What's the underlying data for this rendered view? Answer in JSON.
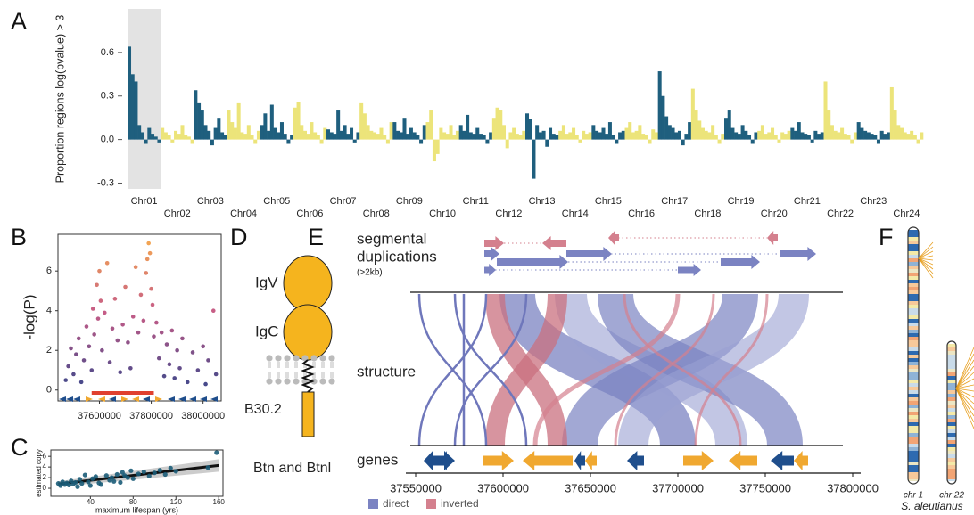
{
  "panels": [
    "A",
    "B",
    "C",
    "D",
    "E",
    "F"
  ],
  "chart_data": [
    {
      "type": "bar",
      "ylabel": "Proportion regions log(pvalue) > 3",
      "categories": [
        "Chr01",
        "Chr02",
        "Chr03",
        "Chr04",
        "Chr05",
        "Chr06",
        "Chr07",
        "Chr08",
        "Chr09",
        "Chr10",
        "Chr11",
        "Chr12",
        "Chr13",
        "Chr14",
        "Chr15",
        "Chr16",
        "Chr17",
        "Chr18",
        "Chr19",
        "Chr20",
        "Chr21",
        "Chr22",
        "Chr23",
        "Chr24"
      ],
      "values": [
        [
          0.64,
          0.45,
          0.4,
          0.1,
          0.05,
          -0.03,
          0.08,
          0.04,
          0.02,
          -0.02
        ],
        [
          0.08,
          0.05,
          0.03,
          -0.02,
          0.06,
          0.04,
          0.1,
          0.03,
          0.02,
          -0.03
        ],
        [
          0.34,
          0.25,
          0.2,
          0.1,
          0.06,
          -0.04,
          0.08,
          0.15,
          0.05,
          0.03
        ],
        [
          0.2,
          0.12,
          0.08,
          0.25,
          0.05,
          0.04,
          0.1,
          0.03,
          -0.03,
          0.06
        ],
        [
          0.1,
          0.18,
          0.06,
          0.24,
          0.08,
          0.05,
          0.12,
          0.04,
          -0.03,
          0.03
        ],
        [
          0.22,
          0.26,
          0.1,
          0.06,
          0.04,
          0.12,
          0.05,
          0.03,
          -0.03,
          0.08
        ],
        [
          0.07,
          0.05,
          0.04,
          0.2,
          0.06,
          0.1,
          0.04,
          0.08,
          -0.02,
          0.05
        ],
        [
          0.25,
          0.18,
          0.1,
          0.06,
          0.05,
          0.04,
          0.08,
          0.03,
          -0.03,
          0.12
        ],
        [
          0.12,
          0.06,
          0.05,
          0.15,
          0.04,
          0.08,
          0.05,
          0.03,
          -0.03,
          0.1
        ],
        [
          0.12,
          0.2,
          -0.15,
          -0.1,
          0.08,
          0.05,
          0.04,
          0.1,
          0.03,
          0.06
        ],
        [
          0.1,
          0.06,
          0.17,
          0.05,
          0.04,
          0.08,
          0.04,
          0.03,
          -0.03,
          0.05
        ],
        [
          0.15,
          0.22,
          0.2,
          0.1,
          -0.06,
          0.05,
          0.08,
          0.04,
          0.03,
          0.06
        ],
        [
          0.18,
          0.14,
          -0.27,
          0.1,
          0.05,
          0.06,
          -0.05,
          0.08,
          0.04,
          0.03
        ],
        [
          0.06,
          0.1,
          0.04,
          0.05,
          0.08,
          0.03,
          -0.02,
          0.06,
          0.04,
          0.05
        ],
        [
          0.1,
          0.06,
          0.05,
          0.08,
          0.04,
          0.12,
          0.03,
          -0.03,
          0.05,
          0.06
        ],
        [
          0.08,
          0.12,
          0.05,
          0.06,
          0.1,
          0.04,
          0.03,
          -0.03,
          0.07,
          0.05
        ],
        [
          0.47,
          0.3,
          0.16,
          0.1,
          0.08,
          0.05,
          0.06,
          -0.04,
          0.04,
          0.12
        ],
        [
          0.35,
          0.2,
          0.13,
          0.08,
          0.06,
          0.05,
          0.1,
          0.03,
          -0.03,
          0.04
        ],
        [
          0.15,
          0.2,
          0.08,
          0.05,
          0.04,
          0.1,
          0.06,
          0.03,
          -0.03,
          0.05
        ],
        [
          0.06,
          0.1,
          0.04,
          0.05,
          0.08,
          0.03,
          -0.02,
          0.05,
          0.04,
          0.06
        ],
        [
          0.08,
          0.06,
          0.12,
          0.05,
          0.04,
          0.03,
          -0.02,
          0.06,
          0.04,
          0.05
        ],
        [
          0.4,
          0.2,
          0.1,
          0.06,
          0.05,
          0.08,
          0.04,
          0.03,
          -0.03,
          0.05
        ],
        [
          0.12,
          0.08,
          0.06,
          0.05,
          0.04,
          0.03,
          -0.03,
          0.06,
          0.04,
          0.05
        ],
        [
          0.36,
          0.2,
          0.1,
          0.08,
          0.05,
          0.04,
          0.06,
          0.03,
          -0.03,
          0.05
        ]
      ],
      "colors": [
        "#1f5f7e",
        "#ece47a"
      ],
      "highlight": "Chr01",
      "highlight_color": "#e3e3e3",
      "ylim": [
        -0.34,
        0.9
      ],
      "yticks": [
        -0.3,
        {
          "value": 0,
          "label": "0.0"
        },
        0.3,
        0.6
      ]
    },
    {
      "type": "scatter",
      "ylabel": "-log(P)",
      "x": [
        37470000,
        37480000,
        37490000,
        37500000,
        37510000,
        37520000,
        37530000,
        37540000,
        37550000,
        37560000,
        37570000,
        37575000,
        37580000,
        37590000,
        37595000,
        37600000,
        37605000,
        37610000,
        37620000,
        37630000,
        37640000,
        37650000,
        37660000,
        37670000,
        37680000,
        37690000,
        37700000,
        37710000,
        37720000,
        37730000,
        37740000,
        37750000,
        37760000,
        37770000,
        37780000,
        37785000,
        37790000,
        37795000,
        37800000,
        37805000,
        37810000,
        37820000,
        37830000,
        37840000,
        37850000,
        37860000,
        37870000,
        37880000,
        37890000,
        37900000,
        37910000,
        37920000,
        37940000,
        37960000,
        37980000,
        38000000,
        38010000,
        38020000,
        38040000,
        38050000
      ],
      "y": [
        0.5,
        1.2,
        2.1,
        0.8,
        1.8,
        2.6,
        0.4,
        1.5,
        3.2,
        2.2,
        1.0,
        4.1,
        2.8,
        5.3,
        3.6,
        6.0,
        4.5,
        2.0,
        3.9,
        6.4,
        1.4,
        3.1,
        4.6,
        2.5,
        0.9,
        3.3,
        5.2,
        2.4,
        1.1,
        3.7,
        6.2,
        2.9,
        4.8,
        3.5,
        5.9,
        6.6,
        7.4,
        6.9,
        5.1,
        4.3,
        2.7,
        3.4,
        1.6,
        2.9,
        0.7,
        2.3,
        1.3,
        3.0,
        0.6,
        2.0,
        1.1,
        2.6,
        0.4,
        1.9,
        1.0,
        2.2,
        0.3,
        1.5,
        4.0,
        0.8
      ],
      "colormap": [
        "#27347e",
        "#c04a7a",
        "#f7a43a"
      ],
      "region": [
        37570000,
        37810000
      ],
      "region_color": "#e0402f",
      "xlim": [
        37440000,
        38070000
      ],
      "ylim": [
        -0.55,
        7.85
      ],
      "xticks": [
        37600000,
        37800000,
        38000000
      ],
      "yticks": [
        0,
        2,
        4,
        6
      ]
    },
    {
      "type": "scatter",
      "xlabel": "maximum lifespan (yrs)",
      "ylabel": "estimated copy",
      "x": [
        10,
        12,
        14,
        16,
        18,
        20,
        22,
        24,
        26,
        28,
        30,
        32,
        35,
        38,
        40,
        42,
        45,
        48,
        50,
        55,
        58,
        60,
        62,
        65,
        68,
        70,
        72,
        75,
        78,
        80,
        85,
        90,
        95,
        100,
        105,
        110,
        115,
        120,
        150,
        158
      ],
      "y": [
        0.9,
        0.5,
        1.2,
        0.7,
        1.0,
        0.6,
        1.4,
        0.8,
        1.1,
        0.3,
        1.7,
        0.9,
        2.5,
        1.2,
        0.5,
        1.8,
        2.2,
        1.0,
        0.7,
        2.4,
        1.5,
        2.0,
        1.3,
        2.6,
        1.1,
        3.0,
        2.4,
        2.0,
        3.3,
        1.8,
        2.7,
        3.1,
        2.3,
        2.9,
        3.4,
        2.6,
        3.8,
        3.2,
        3.9,
        6.7
      ],
      "color": "#1b5c78",
      "fit": {
        "x": [
          10,
          160
        ],
        "y": [
          0.8,
          4.3
        ]
      },
      "xlim": [
        3,
        164
      ],
      "ylim": [
        -1.5,
        7.2
      ],
      "xticks": [
        40,
        80,
        120,
        160
      ],
      "yticks": [
        0,
        2,
        4,
        6
      ]
    }
  ],
  "diagram_d": {
    "labels": [
      "IgV",
      "IgC",
      "B30.2",
      "Btn and Btnl"
    ]
  },
  "diagram_e": {
    "segmental_label": [
      "segmental",
      "duplications"
    ],
    "size_note": "(>2kb)",
    "structure_label": "structure",
    "genes_label": "genes",
    "axis_ticks": [
      37550000,
      37600000,
      37650000,
      37700000,
      37750000,
      37800000
    ],
    "legend": [
      {
        "name": "direct",
        "color": "#7b83c2"
      },
      {
        "name": "inverted",
        "color": "#d4808e"
      }
    ]
  },
  "diagram_f": {
    "chromosomes": [
      "chr 1",
      "chr 22"
    ],
    "species": "S. aleutianus"
  }
}
